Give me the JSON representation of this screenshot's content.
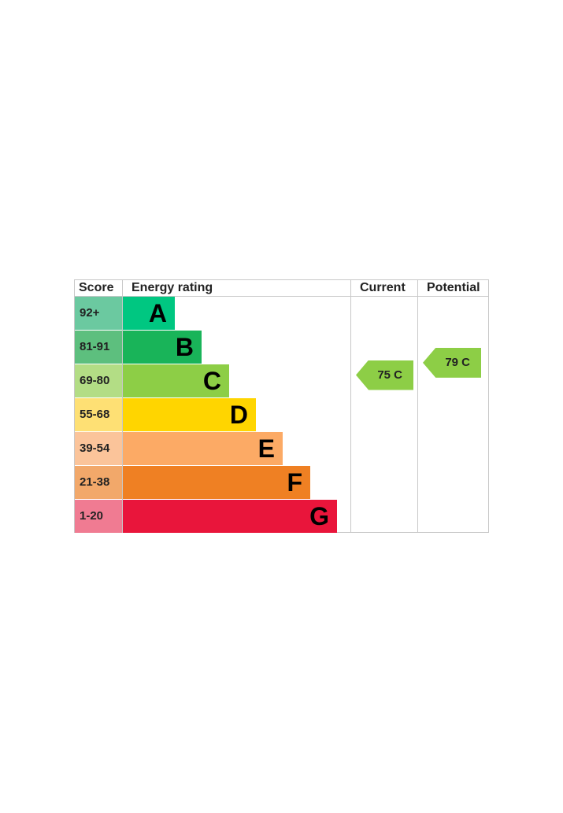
{
  "chart_data": {
    "type": "table",
    "headers": {
      "score": "Score",
      "rating": "Energy rating",
      "current": "Current",
      "potential": "Potential"
    },
    "bands": [
      {
        "range": "92+",
        "letter": "A",
        "color": "#00c781",
        "score_color": "#6bc9a0"
      },
      {
        "range": "81-91",
        "letter": "B",
        "color": "#19b459",
        "score_color": "#5dbf7e"
      },
      {
        "range": "69-80",
        "letter": "C",
        "color": "#8dce46",
        "score_color": "#b3dd85"
      },
      {
        "range": "55-68",
        "letter": "D",
        "color": "#ffd500",
        "score_color": "#fee074"
      },
      {
        "range": "39-54",
        "letter": "E",
        "color": "#fcaa65",
        "score_color": "#fbc49a"
      },
      {
        "range": "21-38",
        "letter": "F",
        "color": "#ef8023",
        "score_color": "#f2a86a"
      },
      {
        "range": "1-20",
        "letter": "G",
        "color": "#e9153b",
        "score_color": "#f07b92"
      }
    ],
    "current": {
      "value": 75,
      "band": "C",
      "label": "75 C",
      "color": "#8dce46"
    },
    "potential": {
      "value": 79,
      "band": "C",
      "label": "79 C",
      "color": "#8dce46"
    }
  }
}
